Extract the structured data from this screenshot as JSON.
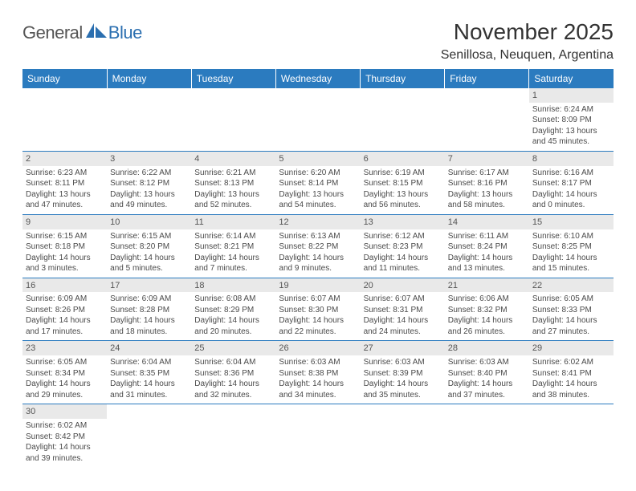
{
  "brand": {
    "part1": "General",
    "part2": "Blue"
  },
  "title": "November 2025",
  "location": "Senillosa, Neuquen, Argentina",
  "styling": {
    "header_bg": "#2b7bbf",
    "header_text": "#ffffff",
    "daynum_bg": "#e9e9e9",
    "cell_border": "#2b7bbf",
    "body_text": "#4a4a4a",
    "title_fontsize": 28,
    "location_fontsize": 16,
    "th_fontsize": 12,
    "cell_fontsize": 10
  },
  "calendar": {
    "type": "table",
    "columns": [
      "Sunday",
      "Monday",
      "Tuesday",
      "Wednesday",
      "Thursday",
      "Friday",
      "Saturday"
    ],
    "first_weekday_index": 6,
    "days": [
      {
        "n": 1,
        "sunrise": "6:24 AM",
        "sunset": "8:09 PM",
        "dl_h": 13,
        "dl_m": 45
      },
      {
        "n": 2,
        "sunrise": "6:23 AM",
        "sunset": "8:11 PM",
        "dl_h": 13,
        "dl_m": 47
      },
      {
        "n": 3,
        "sunrise": "6:22 AM",
        "sunset": "8:12 PM",
        "dl_h": 13,
        "dl_m": 49
      },
      {
        "n": 4,
        "sunrise": "6:21 AM",
        "sunset": "8:13 PM",
        "dl_h": 13,
        "dl_m": 52
      },
      {
        "n": 5,
        "sunrise": "6:20 AM",
        "sunset": "8:14 PM",
        "dl_h": 13,
        "dl_m": 54
      },
      {
        "n": 6,
        "sunrise": "6:19 AM",
        "sunset": "8:15 PM",
        "dl_h": 13,
        "dl_m": 56
      },
      {
        "n": 7,
        "sunrise": "6:17 AM",
        "sunset": "8:16 PM",
        "dl_h": 13,
        "dl_m": 58
      },
      {
        "n": 8,
        "sunrise": "6:16 AM",
        "sunset": "8:17 PM",
        "dl_h": 14,
        "dl_m": 0
      },
      {
        "n": 9,
        "sunrise": "6:15 AM",
        "sunset": "8:18 PM",
        "dl_h": 14,
        "dl_m": 3
      },
      {
        "n": 10,
        "sunrise": "6:15 AM",
        "sunset": "8:20 PM",
        "dl_h": 14,
        "dl_m": 5
      },
      {
        "n": 11,
        "sunrise": "6:14 AM",
        "sunset": "8:21 PM",
        "dl_h": 14,
        "dl_m": 7
      },
      {
        "n": 12,
        "sunrise": "6:13 AM",
        "sunset": "8:22 PM",
        "dl_h": 14,
        "dl_m": 9
      },
      {
        "n": 13,
        "sunrise": "6:12 AM",
        "sunset": "8:23 PM",
        "dl_h": 14,
        "dl_m": 11
      },
      {
        "n": 14,
        "sunrise": "6:11 AM",
        "sunset": "8:24 PM",
        "dl_h": 14,
        "dl_m": 13
      },
      {
        "n": 15,
        "sunrise": "6:10 AM",
        "sunset": "8:25 PM",
        "dl_h": 14,
        "dl_m": 15
      },
      {
        "n": 16,
        "sunrise": "6:09 AM",
        "sunset": "8:26 PM",
        "dl_h": 14,
        "dl_m": 17
      },
      {
        "n": 17,
        "sunrise": "6:09 AM",
        "sunset": "8:28 PM",
        "dl_h": 14,
        "dl_m": 18
      },
      {
        "n": 18,
        "sunrise": "6:08 AM",
        "sunset": "8:29 PM",
        "dl_h": 14,
        "dl_m": 20
      },
      {
        "n": 19,
        "sunrise": "6:07 AM",
        "sunset": "8:30 PM",
        "dl_h": 14,
        "dl_m": 22
      },
      {
        "n": 20,
        "sunrise": "6:07 AM",
        "sunset": "8:31 PM",
        "dl_h": 14,
        "dl_m": 24
      },
      {
        "n": 21,
        "sunrise": "6:06 AM",
        "sunset": "8:32 PM",
        "dl_h": 14,
        "dl_m": 26
      },
      {
        "n": 22,
        "sunrise": "6:05 AM",
        "sunset": "8:33 PM",
        "dl_h": 14,
        "dl_m": 27
      },
      {
        "n": 23,
        "sunrise": "6:05 AM",
        "sunset": "8:34 PM",
        "dl_h": 14,
        "dl_m": 29
      },
      {
        "n": 24,
        "sunrise": "6:04 AM",
        "sunset": "8:35 PM",
        "dl_h": 14,
        "dl_m": 31
      },
      {
        "n": 25,
        "sunrise": "6:04 AM",
        "sunset": "8:36 PM",
        "dl_h": 14,
        "dl_m": 32
      },
      {
        "n": 26,
        "sunrise": "6:03 AM",
        "sunset": "8:38 PM",
        "dl_h": 14,
        "dl_m": 34
      },
      {
        "n": 27,
        "sunrise": "6:03 AM",
        "sunset": "8:39 PM",
        "dl_h": 14,
        "dl_m": 35
      },
      {
        "n": 28,
        "sunrise": "6:03 AM",
        "sunset": "8:40 PM",
        "dl_h": 14,
        "dl_m": 37
      },
      {
        "n": 29,
        "sunrise": "6:02 AM",
        "sunset": "8:41 PM",
        "dl_h": 14,
        "dl_m": 38
      },
      {
        "n": 30,
        "sunrise": "6:02 AM",
        "sunset": "8:42 PM",
        "dl_h": 14,
        "dl_m": 39
      }
    ]
  }
}
